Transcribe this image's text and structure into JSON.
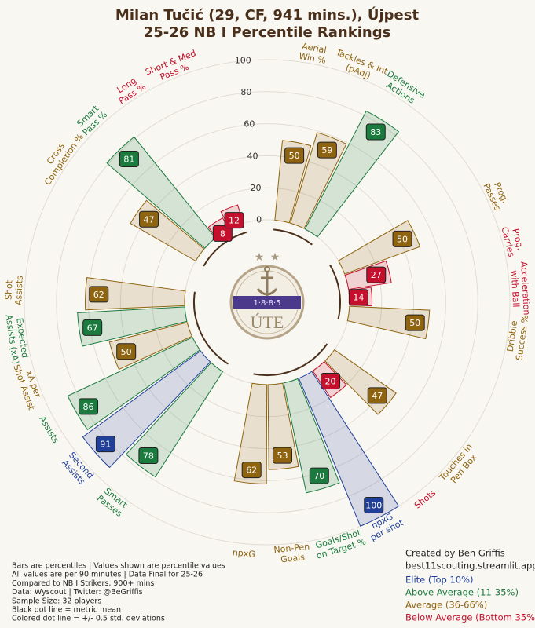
{
  "chart_data": {
    "type": "radial_bar",
    "title": "Milan Tučić (29, CF, 941 mins.), Újpest",
    "subtitle": "25-26 NB I Percentile Rankings",
    "categories": [
      [
        "Aerial",
        "Win %"
      ],
      [
        "Tackles & Int",
        "(pAdj)"
      ],
      [
        "Defensive",
        "Actions"
      ],
      [
        "Prog.",
        "Passes"
      ],
      [
        "Prog.",
        "Carries"
      ],
      [
        "Acceleration",
        "with Ball"
      ],
      [
        "Dribble",
        "Success %"
      ],
      [
        "Touches in",
        "Pen Box"
      ],
      [
        "Shots"
      ],
      [
        "npxG",
        "per shot"
      ],
      [
        "Goals/Shot",
        "on Target %"
      ],
      [
        "Non-Pen",
        "Goals"
      ],
      [
        "npxG"
      ],
      [
        "Smart",
        "Passes"
      ],
      [
        "Second",
        "Assists"
      ],
      [
        "Assists"
      ],
      [
        "xA per",
        "Shot Assist"
      ],
      [
        "Expected",
        "Assists (xA)"
      ],
      [
        "Shot",
        "Assists"
      ],
      [
        "Cross",
        "Completion %"
      ],
      [
        "Smart",
        "Pass %"
      ],
      [
        "Long",
        "Pass %"
      ],
      [
        "Short & Med",
        "Pass %"
      ]
    ],
    "values": [
      50,
      59,
      83,
      50,
      27,
      14,
      50,
      47,
      20,
      100,
      70,
      53,
      62,
      78,
      91,
      86,
      50,
      67,
      62,
      47,
      81,
      8,
      12
    ],
    "colors": [
      "#8f6410",
      "#8f6410",
      "#1b7a3e",
      "#8f6410",
      "#c4102c",
      "#c4102c",
      "#8f6410",
      "#8f6410",
      "#c4102c",
      "#1f3f99",
      "#1b7a3e",
      "#8f6410",
      "#8f6410",
      "#1b7a3e",
      "#1f3f99",
      "#1b7a3e",
      "#8f6410",
      "#1b7a3e",
      "#8f6410",
      "#8f6410",
      "#1b7a3e",
      "#c4102c",
      "#c4102c"
    ],
    "ylim": [
      0,
      100
    ],
    "yticks": [
      0,
      20,
      40,
      60,
      80,
      100
    ],
    "grid": true,
    "legend": [
      {
        "name": "Elite (Top 10%)",
        "color": "#1f3f99"
      },
      {
        "name": "Above Average (11-35%)",
        "color": "#1b7a3e"
      },
      {
        "name": "Average (36-66%)",
        "color": "#8f6410"
      },
      {
        "name": "Below Average (Bottom 35%)",
        "color": "#c4102c"
      }
    ],
    "credits": [
      "Created by Ben Griffis",
      "best11scouting.streamlit.app"
    ],
    "notes": [
      "Bars are percentiles | Values shown are percentile values",
      "All values are per 90 minutes | Data Final for 25-26",
      "Compared to NB I Strikers, 900+ mins",
      "Data: Wyscout | Twitter: @BeGriffis",
      "Sample Size: 32 players",
      "Black dot line = metric mean",
      "Colored dot line = +/- 0.5 std. deviations"
    ],
    "logo": {
      "year": "1·8·8·5",
      "text": "ÚTE"
    }
  }
}
